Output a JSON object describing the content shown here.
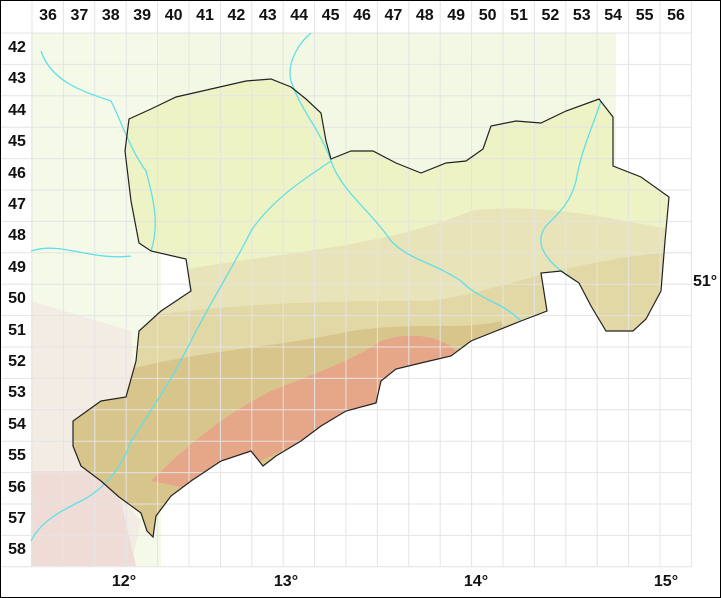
{
  "map": {
    "grid_columns": [
      "36",
      "37",
      "38",
      "39",
      "40",
      "41",
      "42",
      "43",
      "44",
      "45",
      "46",
      "47",
      "48",
      "49",
      "50",
      "51",
      "52",
      "53",
      "54",
      "55",
      "56"
    ],
    "grid_rows": [
      "42",
      "43",
      "44",
      "45",
      "46",
      "47",
      "48",
      "49",
      "50",
      "51",
      "52",
      "53",
      "54",
      "55",
      "56",
      "57",
      "58"
    ],
    "longitude_labels": [
      "12°",
      "13°",
      "14°",
      "15°"
    ],
    "latitude_labels": [
      "51°"
    ],
    "colors": {
      "lowland": "#eef3c6",
      "hills": "#e4dcae",
      "uplands": "#d9c88e",
      "mountains": "#e6a688",
      "outside_region": "#f3f8e4",
      "rivers": "#5fe0e8",
      "border": "#222222",
      "grid": "#e6e6e6"
    }
  }
}
